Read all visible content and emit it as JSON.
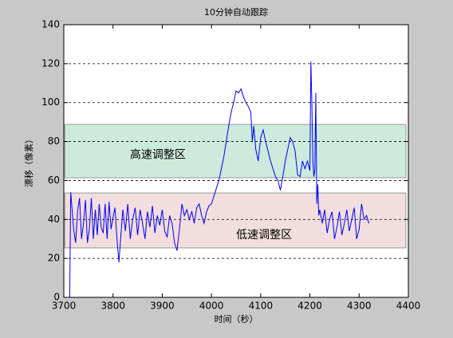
{
  "chart_data": {
    "type": "line",
    "title": "10分钟自动跟踪",
    "x_label": "时间（秒）",
    "y_label": "漂移（像素）",
    "xlim": [
      3700,
      4400
    ],
    "xticks": [
      3700,
      3800,
      3900,
      4000,
      4100,
      4200,
      4300,
      4400
    ],
    "ylim": [
      0,
      140
    ],
    "yticks": [
      0,
      20,
      40,
      60,
      80,
      100,
      120,
      140
    ],
    "grid": true,
    "regions": [
      {
        "label": "高速调整区",
        "xlim": [
          3702,
          4395
        ],
        "ylim": [
          61.4,
          88.8
        ],
        "color": "#cdebdc",
        "label_x": 3891,
        "label_y": 73
      },
      {
        "label": "低速调整区",
        "xlim": [
          3702,
          4395
        ],
        "ylim": [
          25.4,
          53.6
        ],
        "color": "#f2dede",
        "label_x": 4107,
        "label_y": 32
      }
    ],
    "x": [
      3712,
      3714,
      3716,
      3720,
      3724,
      3728,
      3732,
      3736,
      3740,
      3744,
      3748,
      3752,
      3756,
      3760,
      3764,
      3768,
      3772,
      3776,
      3780,
      3784,
      3788,
      3792,
      3796,
      3800,
      3804,
      3808,
      3812,
      3816,
      3820,
      3825,
      3830,
      3835,
      3840,
      3845,
      3850,
      3855,
      3860,
      3865,
      3870,
      3875,
      3880,
      3885,
      3890,
      3895,
      3900,
      3905,
      3910,
      3915,
      3920,
      3925,
      3930,
      3935,
      3940,
      3945,
      3950,
      3955,
      3960,
      3965,
      3970,
      3975,
      3980,
      3985,
      3990,
      3995,
      4000,
      4005,
      4010,
      4015,
      4020,
      4025,
      4030,
      4035,
      4040,
      4045,
      4050,
      4055,
      4060,
      4065,
      4070,
      4075,
      4080,
      4083,
      4086,
      4090,
      4095,
      4100,
      4105,
      4110,
      4115,
      4120,
      4125,
      4130,
      4135,
      4140,
      4145,
      4150,
      4155,
      4160,
      4165,
      4170,
      4175,
      4180,
      4185,
      4190,
      4195,
      4200,
      4202,
      4204,
      4206,
      4208,
      4210,
      4212,
      4214,
      4216,
      4218,
      4220,
      4225,
      4230,
      4235,
      4240,
      4245,
      4250,
      4255,
      4260,
      4265,
      4270,
      4275,
      4280,
      4285,
      4290,
      4295,
      4300,
      4305,
      4310,
      4315,
      4320
    ],
    "series": [
      {
        "color": "#0000ff",
        "values": [
          0,
          54,
          48,
          35,
          28,
          44,
          51,
          30,
          38,
          50,
          28,
          35,
          51,
          30,
          45,
          32,
          48,
          36,
          33,
          48,
          30,
          49,
          35,
          41,
          46,
          30,
          18,
          32,
          45,
          34,
          48,
          30,
          40,
          46,
          32,
          45,
          38,
          30,
          44,
          36,
          47,
          33,
          42,
          37,
          45,
          34,
          31,
          42,
          38,
          28,
          24,
          35,
          48,
          42,
          45,
          40,
          44,
          38,
          46,
          48,
          42,
          38,
          44,
          47,
          48,
          52,
          56,
          60,
          66,
          72,
          80,
          88,
          95,
          100,
          106,
          105,
          107,
          103,
          100,
          98,
          95,
          80,
          88,
          76,
          70,
          82,
          86,
          80,
          75,
          70,
          66,
          62,
          60,
          55,
          62,
          70,
          76,
          82,
          80,
          75,
          63,
          62,
          70,
          66,
          70,
          65,
          121,
          100,
          70,
          62,
          65,
          105,
          48,
          58,
          42,
          45,
          38,
          45,
          33,
          40,
          44,
          30,
          36,
          44,
          32,
          38,
          45,
          34,
          40,
          46,
          30,
          35,
          48,
          40,
          42,
          38
        ]
      }
    ]
  }
}
